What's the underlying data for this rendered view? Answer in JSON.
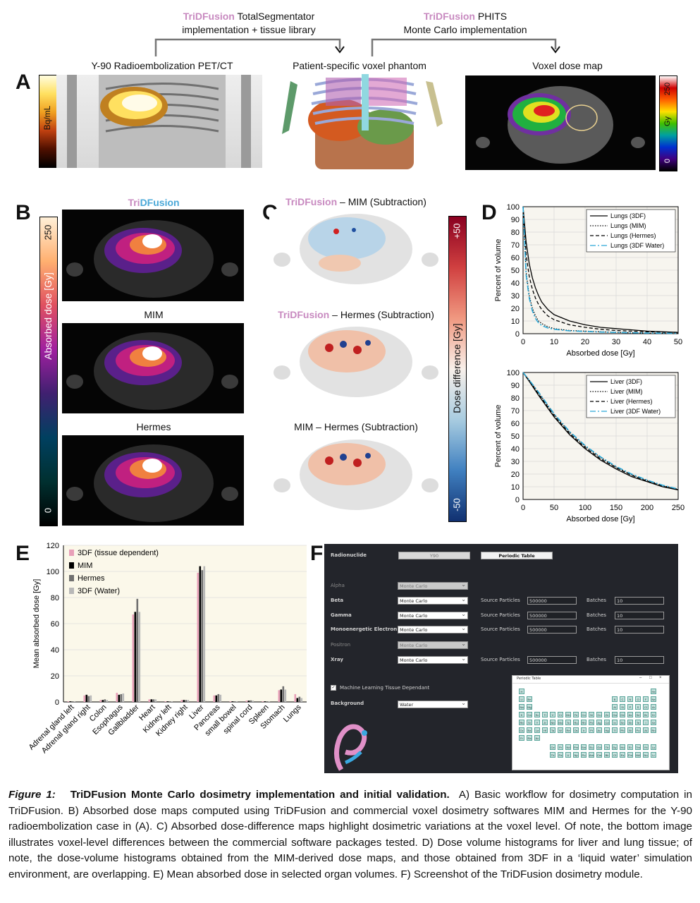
{
  "workflow": {
    "seg_brand": "TriDFusion",
    "seg_line1_rest": " TotalSegmentator",
    "seg_line2": "implementation + tissue library",
    "mc_brand": "TriDFusion",
    "mc_line1_rest": " PHITS",
    "mc_line2": "Monte Carlo implementation"
  },
  "panel_a": {
    "letter": "A",
    "pet_title": "Y-90 Radioembolization PET/CT",
    "phantom_title": "Patient-specific voxel phantom",
    "dose_title": "Voxel dose map",
    "pet_colorbar_label": "Bq/mL",
    "dose_colorbar_top": "250",
    "dose_colorbar_mid": "Gy",
    "dose_colorbar_bottom": "0"
  },
  "panel_b": {
    "letter": "B",
    "title1_tri": "Tri",
    "title1_df": "DFusion",
    "title2": "MIM",
    "title3": "Hermes",
    "colorbar_label": "Absorbed dose [Gy]",
    "colorbar_top": "250",
    "colorbar_bottom": "0"
  },
  "panel_c": {
    "letter": "C",
    "title1_brand": "TriDFusion",
    "title1_rest": " – MIM (Subtraction)",
    "title2_brand": "TriDFusion",
    "title2_rest": " – Hermes (Subtraction)",
    "title3": "MIM – Hermes (Subtraction)",
    "colorbar_label": "Dose difference [Gy]",
    "colorbar_top": "+50",
    "colorbar_bottom": "-50"
  },
  "panel_d": {
    "letter": "D"
  },
  "panel_e": {
    "letter": "E"
  },
  "panel_f": {
    "letter": "F",
    "radionuclide_label": "Radionuclide",
    "radionuclide_value": "Y90",
    "periodic_button": "Periodic Table",
    "rows": [
      {
        "label": "Alpha",
        "method": "Monte Carlo",
        "disabled": true,
        "particles": null,
        "batches": null
      },
      {
        "label": "Beta",
        "method": "Monte Carlo",
        "disabled": false,
        "particles": "500000",
        "batches": "10"
      },
      {
        "label": "Gamma",
        "method": "Monte Carlo",
        "disabled": false,
        "particles": "500000",
        "batches": "10"
      },
      {
        "label": "Monoenergetic Electron",
        "method": "Monte Carlo",
        "disabled": false,
        "particles": "500000",
        "batches": "10"
      },
      {
        "label": "Positron",
        "method": "Monte Carlo",
        "disabled": true,
        "particles": null,
        "batches": null
      },
      {
        "label": "Xray",
        "method": "Monte Carlo",
        "disabled": false,
        "particles": "500000",
        "batches": "10"
      }
    ],
    "source_particles_label": "Source Particles",
    "batches_label": "Batches",
    "ml_checkbox_label": "Machine Learning Tissue Dependant",
    "background_label": "Background",
    "background_value": "Water",
    "periodic_window_title": "Periodic Table",
    "periodic_elements": [
      "H",
      "He",
      "Li",
      "Be",
      "B",
      "C",
      "N",
      "O",
      "F",
      "Ne",
      "Na",
      "Mg",
      "Al",
      "Si",
      "P",
      "S",
      "Cl",
      "Ar",
      "K",
      "Ca",
      "Sc",
      "Ti",
      "V",
      "Cr",
      "Mn",
      "Fe",
      "Co",
      "Ni",
      "Cu",
      "Zn",
      "Ga",
      "Ge",
      "As",
      "Se",
      "Br",
      "Kr",
      "Rb",
      "Sr",
      "Y",
      "Zr",
      "Nb",
      "Mo",
      "Tc",
      "Ru",
      "Rh",
      "Pd",
      "Ag",
      "Cd",
      "In",
      "Sn",
      "Sb",
      "Te",
      "I",
      "Xe",
      "Cs",
      "Ba",
      "La",
      "Hf",
      "Ta",
      "W",
      "Re",
      "Os",
      "Ir",
      "Pt",
      "Au",
      "Hg",
      "Tl",
      "Pb",
      "Bi",
      "Po",
      "At",
      "Rn",
      "Fr",
      "Ra",
      "Ac"
    ],
    "periodic_lanthanides": [
      "Ce",
      "Pr",
      "Nd",
      "Pm",
      "Sm",
      "Eu",
      "Gd",
      "Tb",
      "Dy",
      "Ho",
      "Er",
      "Tm",
      "Yb",
      "Lu"
    ],
    "periodic_actinides": [
      "Th",
      "Pa",
      "U",
      "Np",
      "Pu",
      "Am",
      "Cm",
      "Bk",
      "Cf",
      "Es",
      "Fm",
      "Md",
      "No",
      "Lr"
    ]
  },
  "caption": {
    "figure_label": "Figure 1:",
    "title": "TriDFusion Monte Carlo dosimetry implementation and initial validation.",
    "body": "A) Basic workflow for dosimetry computation in TriDFusion.  B) Absorbed dose maps computed using TriDFusion and commercial voxel dosimetry softwares MIM and Hermes for the Y-90 radioembolization case in (A).  C) Absorbed dose-difference maps highlight dosimetric variations at the voxel level. Of note, the bottom image illustrates voxel-level differences between the commercial software packages tested. D) Dose volume histograms for liver and lung tissue; of note, the dose-volume histograms obtained from the MIM-derived dose maps, and those obtained from 3DF in a ‘liquid water’ simulation environment, are overlapping.  E) Mean absorbed dose in selected organ volumes.  F) Screenshot of the TriDFusion dosimetry module."
  },
  "colors": {
    "tdf_pink": "#c88ac0",
    "tdf_blue": "#4aa8d8",
    "lungs_water": "#2aa8d8",
    "bar_3df": "#e8a0b8",
    "bar_mim": "#000000",
    "bar_hermes": "#707070",
    "bar_water": "#b8b8b8"
  },
  "chart_data": [
    {
      "type": "line",
      "title": "",
      "xlabel": "Absorbed dose [Gy]",
      "ylabel": "Percent of volume",
      "xlim": [
        0,
        50
      ],
      "ylim": [
        0,
        100
      ],
      "xticks": [
        0,
        10,
        20,
        30,
        40,
        50
      ],
      "yticks": [
        0,
        10,
        20,
        30,
        40,
        50,
        60,
        70,
        80,
        90,
        100
      ],
      "grid": true,
      "legend_position": "top-right",
      "x": [
        0,
        1,
        2,
        3,
        4,
        5,
        6,
        8,
        10,
        15,
        20,
        25,
        30,
        40,
        50
      ],
      "series": [
        {
          "name": "Lungs (3DF)",
          "style": "solid",
          "values": [
            100,
            72,
            55,
            44,
            36,
            30,
            25,
            19,
            15,
            10,
            7,
            5,
            4,
            2,
            1
          ]
        },
        {
          "name": "Lungs (MIM)",
          "style": "dotted",
          "values": [
            100,
            48,
            30,
            20,
            14,
            10,
            8,
            5.5,
            4,
            2.5,
            2,
            1.5,
            1,
            0.5,
            0.3
          ]
        },
        {
          "name": "Lungs (Hermes)",
          "style": "dashed",
          "values": [
            100,
            62,
            45,
            35,
            28,
            23,
            19,
            14,
            11,
            7,
            5,
            3.5,
            2.5,
            1.5,
            1
          ]
        },
        {
          "name": "Lungs (3DF Water)",
          "style": "dashdot",
          "values": [
            100,
            46,
            28,
            18,
            12,
            8.5,
            6.5,
            4.5,
            3.5,
            2.2,
            1.8,
            1.3,
            1,
            0.5,
            0.3
          ]
        }
      ]
    },
    {
      "type": "line",
      "title": "",
      "xlabel": "Absorbed dose [Gy]",
      "ylabel": "Percent of volume",
      "xlim": [
        0,
        250
      ],
      "ylim": [
        0,
        100
      ],
      "xticks": [
        0,
        50,
        100,
        150,
        200,
        250
      ],
      "yticks": [
        0,
        10,
        20,
        30,
        40,
        50,
        60,
        70,
        80,
        90,
        100
      ],
      "grid": true,
      "legend_position": "top-right",
      "x": [
        0,
        10,
        25,
        50,
        75,
        100,
        125,
        150,
        175,
        200,
        225,
        250
      ],
      "series": [
        {
          "name": "Liver (3DF)",
          "style": "solid",
          "values": [
            100,
            93,
            82,
            65,
            51,
            40,
            31,
            24,
            18,
            14,
            10,
            7.5
          ]
        },
        {
          "name": "Liver (MIM)",
          "style": "dotted",
          "values": [
            100,
            94,
            84,
            67,
            53,
            42,
            33,
            25.5,
            19.5,
            15,
            11,
            8
          ]
        },
        {
          "name": "Liver (Hermes)",
          "style": "dashed",
          "values": [
            100,
            93.5,
            83,
            66,
            52,
            41,
            32,
            25,
            19,
            14.5,
            10.5,
            7.8
          ]
        },
        {
          "name": "Liver (3DF Water)",
          "style": "dashdot",
          "values": [
            100,
            94,
            84.5,
            67.5,
            53.5,
            42.5,
            33.5,
            26,
            20,
            15.2,
            11.2,
            8.2
          ]
        }
      ]
    },
    {
      "type": "bar",
      "title": "",
      "xlabel": "",
      "ylabel": "Mean absorbed dose [Gy]",
      "ylim": [
        0,
        120
      ],
      "yticks": [
        0,
        20,
        40,
        60,
        80,
        100,
        120
      ],
      "grid": true,
      "legend_position": "top-left",
      "categories": [
        "Adrenal gland left",
        "Adrenal gland right",
        "Colon",
        "Esophagus",
        "Gallbladder",
        "Heart",
        "Kidney left",
        "Kidney right",
        "Liver",
        "Pancreas",
        "small bowel",
        "spinal cord",
        "Spleen",
        "Stomach",
        "Lungs"
      ],
      "series": [
        {
          "name": "3DF (tissue dependent)",
          "values": [
            0.5,
            5,
            1.5,
            7,
            67,
            2,
            0.5,
            1.5,
            99,
            5,
            0.5,
            1,
            0.5,
            9,
            6
          ]
        },
        {
          "name": "MIM",
          "values": [
            0.5,
            5.5,
            1.5,
            5.5,
            69,
            2,
            0.5,
            1.5,
            104,
            5,
            0.5,
            1,
            0.5,
            9.5,
            3
          ]
        },
        {
          "name": "Hermes",
          "values": [
            0.5,
            4.5,
            2,
            6,
            79,
            2,
            0.5,
            1.5,
            101,
            6,
            0.5,
            1.2,
            0.5,
            12,
            4
          ]
        },
        {
          "name": "3DF (Water)",
          "values": [
            0.5,
            5,
            1.5,
            6.5,
            69,
            2,
            0.5,
            1.5,
            104,
            5.5,
            0.5,
            1,
            0.5,
            9.5,
            3
          ]
        }
      ]
    }
  ]
}
